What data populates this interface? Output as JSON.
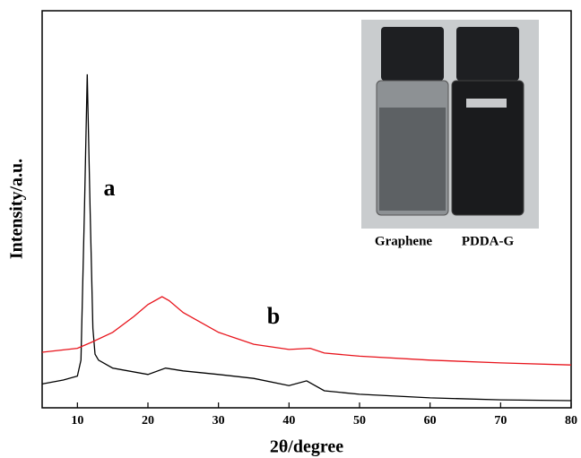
{
  "chart_data": {
    "type": "line",
    "x_label": "2θ/degree",
    "y_label": "Intensity/a.u.",
    "annotations": [
      "a",
      "b"
    ],
    "inset_labels": [
      "Graphene",
      "PDDA-G"
    ],
    "xlim": [
      5,
      80
    ],
    "xticks": [
      10,
      20,
      30,
      40,
      50,
      60,
      70,
      80
    ],
    "ylim": [
      0,
      100
    ],
    "series": [
      {
        "name": "a",
        "color": "#000000",
        "x": [
          5,
          8,
          10,
          10.5,
          11,
          11.4,
          11.8,
          12.2,
          12.5,
          13,
          15,
          20,
          22.5,
          25,
          30,
          35,
          40,
          42.5,
          45,
          50,
          60,
          70,
          80
        ],
        "values": [
          6,
          7,
          8,
          12,
          50,
          84,
          50,
          20,
          13.5,
          12,
          10,
          8.4,
          10,
          9.3,
          8.4,
          7.4,
          5.6,
          6.8,
          4.3,
          3.4,
          2.5,
          2,
          1.8
        ]
      },
      {
        "name": "b",
        "color": "#e8141c",
        "x": [
          5,
          10,
          12,
          15,
          18,
          20,
          22,
          23,
          25,
          30,
          35,
          40,
          43,
          45,
          50,
          60,
          70,
          80
        ],
        "values": [
          14,
          15,
          16.5,
          19,
          23,
          26,
          28,
          27,
          24,
          19,
          16,
          14.7,
          15,
          13.8,
          13,
          12,
          11.3,
          10.8
        ]
      }
    ]
  }
}
